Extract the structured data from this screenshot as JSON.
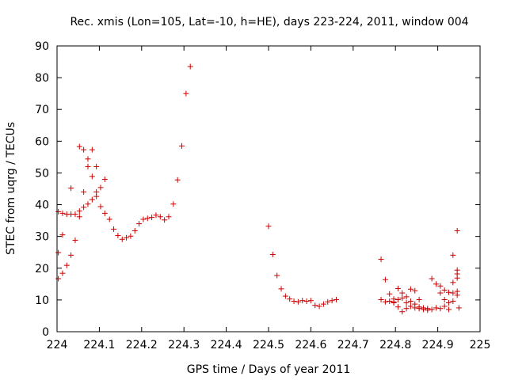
{
  "chart_data": {
    "type": "scatter",
    "title": "Rec. xmis (Lon=105, Lat=-10, h=HE), days 223-224, 2011, window 004",
    "xlabel": "GPS time / Days of year 2011",
    "ylabel": "STEC from uqrg / TECUs",
    "xlim": [
      224,
      225
    ],
    "ylim": [
      0,
      90
    ],
    "x_ticks": [
      224,
      224.1,
      224.2,
      224.3,
      224.4,
      224.5,
      224.6,
      224.7,
      224.8,
      224.9,
      225
    ],
    "x_tick_labels": [
      "224",
      "224.1",
      "224.2",
      "224.3",
      "224.4",
      "224.5",
      "224.6",
      "224.7",
      "224.8",
      "224.9",
      "225"
    ],
    "y_ticks": [
      0,
      10,
      20,
      30,
      40,
      50,
      60,
      70,
      80,
      90
    ],
    "y_tick_labels": [
      "0",
      "10",
      "20",
      "30",
      "40",
      "50",
      "60",
      "70",
      "80",
      "90"
    ],
    "grid": false,
    "marker": "plus",
    "colors": {
      "points": "#cc0000"
    },
    "series": [
      {
        "points": [
          [
            224.003,
            16.7
          ],
          [
            224.003,
            24.9
          ],
          [
            224.003,
            37.8
          ],
          [
            224.013,
            18.4
          ],
          [
            224.013,
            30.5
          ],
          [
            224.013,
            37.3
          ],
          [
            224.023,
            20.9
          ],
          [
            224.023,
            37.0
          ],
          [
            224.033,
            24.1
          ],
          [
            224.033,
            37.0
          ],
          [
            224.033,
            45.2
          ],
          [
            224.043,
            28.8
          ],
          [
            224.043,
            37.0
          ],
          [
            224.053,
            36.2
          ],
          [
            224.053,
            38.0
          ],
          [
            224.053,
            58.3
          ],
          [
            224.063,
            39.2
          ],
          [
            224.063,
            44.0
          ],
          [
            224.063,
            57.3
          ],
          [
            224.073,
            40.2
          ],
          [
            224.073,
            52.0
          ],
          [
            224.073,
            54.4
          ],
          [
            224.083,
            41.6
          ],
          [
            224.083,
            48.9
          ],
          [
            224.083,
            57.3
          ],
          [
            224.093,
            42.6
          ],
          [
            224.093,
            44.0
          ],
          [
            224.093,
            52.0
          ],
          [
            224.103,
            45.4
          ],
          [
            224.103,
            39.4
          ],
          [
            224.113,
            48.0
          ],
          [
            224.113,
            37.3
          ],
          [
            224.124,
            35.4
          ],
          [
            224.134,
            32.3
          ],
          [
            224.144,
            30.3
          ],
          [
            224.154,
            29.1
          ],
          [
            224.164,
            29.6
          ],
          [
            224.174,
            30.1
          ],
          [
            224.184,
            31.8
          ],
          [
            224.194,
            34.0
          ],
          [
            224.204,
            35.4
          ],
          [
            224.214,
            35.7
          ],
          [
            224.224,
            36.0
          ],
          [
            224.234,
            36.7
          ],
          [
            224.244,
            36.2
          ],
          [
            224.254,
            35.2
          ],
          [
            224.264,
            36.2
          ],
          [
            224.275,
            40.2
          ],
          [
            224.285,
            47.8
          ],
          [
            224.295,
            58.5
          ],
          [
            224.305,
            75.0
          ],
          [
            224.315,
            83.5
          ],
          [
            224.5,
            33.2
          ],
          [
            224.51,
            24.3
          ],
          [
            224.52,
            17.7
          ],
          [
            224.53,
            13.5
          ],
          [
            224.54,
            11.2
          ],
          [
            224.55,
            10.3
          ],
          [
            224.56,
            9.6
          ],
          [
            224.57,
            9.4
          ],
          [
            224.58,
            9.8
          ],
          [
            224.59,
            9.6
          ],
          [
            224.6,
            9.8
          ],
          [
            224.61,
            8.3
          ],
          [
            224.62,
            8.0
          ],
          [
            224.63,
            8.7
          ],
          [
            224.64,
            9.4
          ],
          [
            224.65,
            9.8
          ],
          [
            224.66,
            10.1
          ],
          [
            224.766,
            22.8
          ],
          [
            224.766,
            10.1
          ],
          [
            224.776,
            16.4
          ],
          [
            224.776,
            9.4
          ],
          [
            224.786,
            11.9
          ],
          [
            224.786,
            9.6
          ],
          [
            224.796,
            10.3
          ],
          [
            224.796,
            9.4
          ],
          [
            224.796,
            9.1
          ],
          [
            224.806,
            13.6
          ],
          [
            224.806,
            10.1
          ],
          [
            224.806,
            7.8
          ],
          [
            224.816,
            12.2
          ],
          [
            224.816,
            10.6
          ],
          [
            224.816,
            6.3
          ],
          [
            224.826,
            11.0
          ],
          [
            224.826,
            9.1
          ],
          [
            224.826,
            7.3
          ],
          [
            224.836,
            13.4
          ],
          [
            224.836,
            9.6
          ],
          [
            224.836,
            8.0
          ],
          [
            224.846,
            12.9
          ],
          [
            224.846,
            8.7
          ],
          [
            224.846,
            7.5
          ],
          [
            224.856,
            10.1
          ],
          [
            224.856,
            7.8
          ],
          [
            224.856,
            7.3
          ],
          [
            224.866,
            7.5
          ],
          [
            224.866,
            7.0
          ],
          [
            224.876,
            7.3
          ],
          [
            224.876,
            6.8
          ],
          [
            224.886,
            16.7
          ],
          [
            224.886,
            7.0
          ],
          [
            224.896,
            15.0
          ],
          [
            224.896,
            7.5
          ],
          [
            224.906,
            14.4
          ],
          [
            224.906,
            12.2
          ],
          [
            224.906,
            7.3
          ],
          [
            224.916,
            13.1
          ],
          [
            224.916,
            10.1
          ],
          [
            224.916,
            8.0
          ],
          [
            224.926,
            12.4
          ],
          [
            224.926,
            9.1
          ],
          [
            224.926,
            7.0
          ],
          [
            224.936,
            24.1
          ],
          [
            224.936,
            15.5
          ],
          [
            224.936,
            12.2
          ],
          [
            224.936,
            9.6
          ],
          [
            224.946,
            31.8
          ],
          [
            224.946,
            19.4
          ],
          [
            224.946,
            18.2
          ],
          [
            224.946,
            16.9
          ],
          [
            224.946,
            12.7
          ],
          [
            224.946,
            11.5
          ],
          [
            224.95,
            7.5
          ]
        ]
      }
    ]
  }
}
